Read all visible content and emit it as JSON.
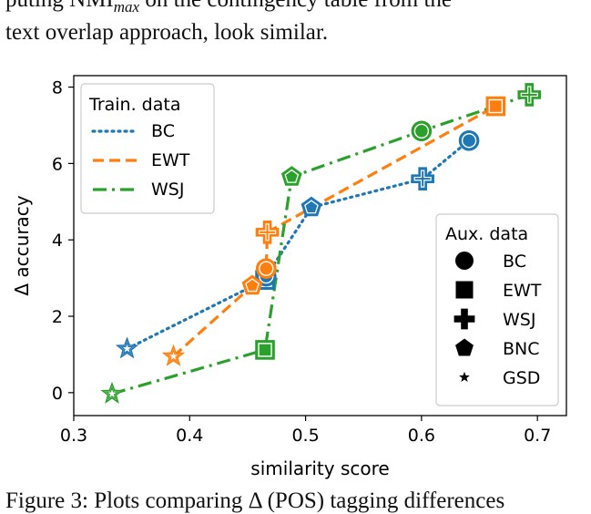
{
  "page": {
    "text_line_1": "puting NMI",
    "text_line_1_sub": "max",
    "text_line_1_rest": " on the contingency table from the",
    "text_line_2": "text overlap approach, look similar.",
    "caption_fragment": "Figure 3: Plots comparing Δ (POS) tagging differences"
  },
  "chart_data": {
    "type": "scatter",
    "xlabel": "similarity score",
    "ylabel": "Δ accuracy",
    "xlim": [
      0.3,
      0.725
    ],
    "ylim": [
      -0.6,
      8.3
    ],
    "xticks": [
      0.3,
      0.4,
      0.5,
      0.6,
      0.7
    ],
    "xtick_labels": [
      "0.3",
      "0.4",
      "0.5",
      "0.6",
      "0.7"
    ],
    "yticks": [
      0,
      2,
      4,
      6,
      8
    ],
    "ytick_labels": [
      "0",
      "2",
      "4",
      "6",
      "8"
    ],
    "grid": false,
    "train_legend": {
      "title": "Train. data",
      "placement": "top-left",
      "entries": [
        {
          "name": "BC",
          "color": "#1f77b4",
          "dash": "dotted"
        },
        {
          "name": "EWT",
          "color": "#ff7f0e",
          "dash": "dashed"
        },
        {
          "name": "WSJ",
          "color": "#2ca02c",
          "dash": "dashdot"
        }
      ]
    },
    "aux_legend": {
      "title": "Aux. data",
      "placement": "bottom-right",
      "entries": [
        {
          "name": "BC",
          "marker": "circle"
        },
        {
          "name": "EWT",
          "marker": "square"
        },
        {
          "name": "WSJ",
          "marker": "plus"
        },
        {
          "name": "BNC",
          "marker": "pentagon"
        },
        {
          "name": "GSD",
          "marker": "star"
        }
      ]
    },
    "series": [
      {
        "name": "BC",
        "color": "#1f77b4",
        "dash": "dotted",
        "points": [
          {
            "x": 0.346,
            "y": 1.15,
            "marker": "star"
          },
          {
            "x": 0.465,
            "y": 2.95,
            "marker": "square"
          },
          {
            "x": 0.466,
            "y": 3.05,
            "marker": "circle"
          },
          {
            "x": 0.505,
            "y": 4.85,
            "marker": "pentagon"
          },
          {
            "x": 0.601,
            "y": 5.6,
            "marker": "plus"
          },
          {
            "x": 0.641,
            "y": 6.6,
            "marker": "circle"
          }
        ]
      },
      {
        "name": "EWT",
        "color": "#ff7f0e",
        "dash": "dashed",
        "points": [
          {
            "x": 0.386,
            "y": 0.95,
            "marker": "star"
          },
          {
            "x": 0.454,
            "y": 2.8,
            "marker": "pentagon"
          },
          {
            "x": 0.466,
            "y": 3.25,
            "marker": "circle"
          },
          {
            "x": 0.467,
            "y": 4.2,
            "marker": "plus"
          },
          {
            "x": 0.664,
            "y": 7.5,
            "marker": "square"
          }
        ]
      },
      {
        "name": "WSJ",
        "color": "#2ca02c",
        "dash": "dashdot",
        "points": [
          {
            "x": 0.333,
            "y": -0.03,
            "marker": "star"
          },
          {
            "x": 0.465,
            "y": 1.12,
            "marker": "square"
          },
          {
            "x": 0.488,
            "y": 5.65,
            "marker": "pentagon"
          },
          {
            "x": 0.6,
            "y": 6.85,
            "marker": "circle"
          },
          {
            "x": 0.693,
            "y": 7.8,
            "marker": "plus"
          }
        ]
      }
    ]
  }
}
